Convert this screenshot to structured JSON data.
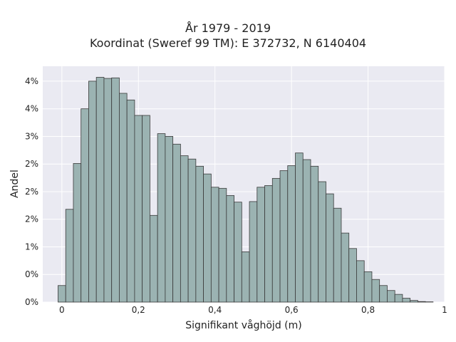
{
  "chart_data": {
    "type": "bar",
    "title": "År 1979 - 2019",
    "subtitle": "Koordinat (Sweref 99 TM): E 372732, N 6140404",
    "xlabel": "Signifikant våghöjd (m)",
    "ylabel": "Andel",
    "xlim": [
      -0.05,
      1.0
    ],
    "ylim": [
      0,
      0.0427
    ],
    "x_tick_values": [
      0,
      0.2,
      0.4,
      0.6,
      0.8,
      1.0
    ],
    "x_tick_labels": [
      "0",
      "0,2",
      "0,4",
      "0,6",
      "0,8",
      "1"
    ],
    "y_tick_values": [
      0,
      0.005,
      0.01,
      0.015,
      0.02,
      0.025,
      0.03,
      0.035,
      0.04
    ],
    "y_tick_labels": [
      "0%",
      "0%",
      "1%",
      "2%",
      "2%",
      "2%",
      "3%",
      "4%",
      "4%"
    ],
    "bin_width": 0.02,
    "bins_start": [
      -0.01,
      0.01,
      0.03,
      0.05,
      0.07,
      0.09,
      0.11,
      0.13,
      0.15,
      0.17,
      0.19,
      0.21,
      0.23,
      0.25,
      0.27,
      0.29,
      0.31,
      0.33,
      0.35,
      0.37,
      0.39,
      0.41,
      0.43,
      0.45,
      0.47,
      0.49,
      0.51,
      0.53,
      0.55,
      0.57,
      0.59,
      0.61,
      0.63,
      0.65,
      0.67,
      0.69,
      0.71,
      0.73,
      0.75,
      0.77,
      0.79,
      0.81,
      0.83,
      0.85,
      0.87,
      0.89,
      0.91,
      0.93,
      0.95
    ],
    "values": [
      0.003,
      0.0168,
      0.0251,
      0.035,
      0.04,
      0.0407,
      0.0405,
      0.0406,
      0.0378,
      0.0366,
      0.0338,
      0.0338,
      0.0157,
      0.0305,
      0.03,
      0.0286,
      0.0265,
      0.0259,
      0.0246,
      0.0232,
      0.0208,
      0.0206,
      0.0193,
      0.0181,
      0.0091,
      0.0182,
      0.0208,
      0.0211,
      0.0224,
      0.0238,
      0.0247,
      0.027,
      0.0258,
      0.0246,
      0.0218,
      0.0196,
      0.017,
      0.0125,
      0.0097,
      0.0075,
      0.0055,
      0.0041,
      0.003,
      0.0021,
      0.0014,
      0.0007,
      0.0003,
      0.0001,
      5e-05
    ],
    "bar_color": "#9bb3b2",
    "edge_color": "#3a3a3a",
    "plot_background": "#eaeaf2",
    "grid": true
  }
}
